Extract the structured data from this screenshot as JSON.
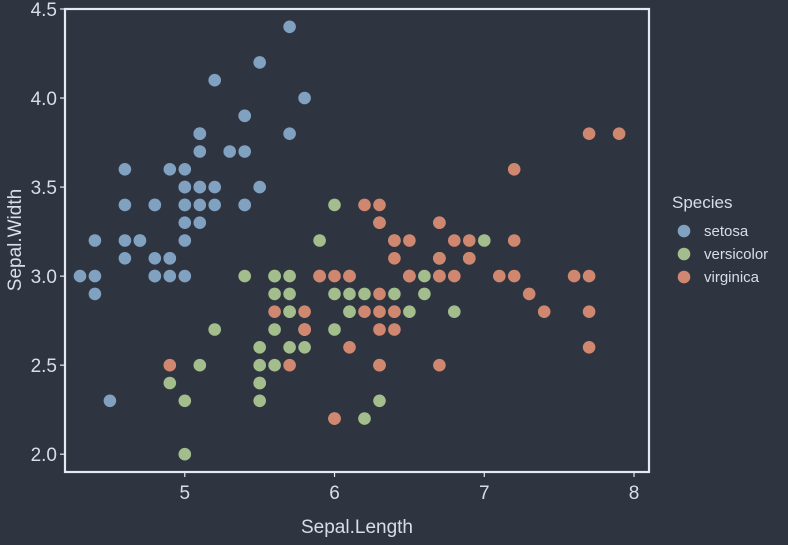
{
  "chart_data": {
    "type": "scatter",
    "title": "",
    "xlabel": "Sepal.Length",
    "ylabel": "Sepal.Width",
    "xlim": [
      4.2,
      8.1
    ],
    "ylim": [
      1.9,
      4.5
    ],
    "xticks": [
      5,
      6,
      7,
      8
    ],
    "yticks": [
      2.0,
      2.5,
      3.0,
      3.5,
      4.0,
      4.5
    ],
    "grid": false,
    "legend": {
      "title": "Species",
      "placement": "right",
      "entries": [
        "setosa",
        "versicolor",
        "virginica"
      ]
    },
    "series": [
      {
        "name": "setosa",
        "color": "#81a1c1",
        "x": [
          5.1,
          4.9,
          4.7,
          4.6,
          5.0,
          5.4,
          4.6,
          5.0,
          4.4,
          4.9,
          5.4,
          4.8,
          4.8,
          4.3,
          5.8,
          5.7,
          5.4,
          5.1,
          5.7,
          5.1,
          5.4,
          5.1,
          4.6,
          5.1,
          4.8,
          5.0,
          5.0,
          5.2,
          5.2,
          4.7,
          4.8,
          5.4,
          5.2,
          5.5,
          4.9,
          5.0,
          5.5,
          4.9,
          4.4,
          5.1,
          5.0,
          4.5,
          4.4,
          5.0,
          5.1,
          4.8,
          5.1,
          4.6,
          5.3,
          5.0
        ],
        "y": [
          3.5,
          3.0,
          3.2,
          3.1,
          3.6,
          3.9,
          3.4,
          3.4,
          2.9,
          3.1,
          3.7,
          3.4,
          3.0,
          3.0,
          4.0,
          4.4,
          3.9,
          3.5,
          3.8,
          3.8,
          3.4,
          3.7,
          3.6,
          3.3,
          3.4,
          3.0,
          3.4,
          3.5,
          3.4,
          3.2,
          3.1,
          3.4,
          4.1,
          4.2,
          3.1,
          3.2,
          3.5,
          3.6,
          3.0,
          3.4,
          3.5,
          2.3,
          3.2,
          3.5,
          3.8,
          3.0,
          3.8,
          3.2,
          3.7,
          3.3
        ]
      },
      {
        "name": "versicolor",
        "color": "#a3be8c",
        "x": [
          7.0,
          6.4,
          6.9,
          5.5,
          6.5,
          5.7,
          6.3,
          4.9,
          6.6,
          5.2,
          5.0,
          5.9,
          6.0,
          6.1,
          5.6,
          6.7,
          5.6,
          5.8,
          6.2,
          5.6,
          5.9,
          6.1,
          6.3,
          6.1,
          6.4,
          6.6,
          6.8,
          6.7,
          6.0,
          5.7,
          5.5,
          5.5,
          5.8,
          6.0,
          5.4,
          6.0,
          6.7,
          6.3,
          5.6,
          5.5,
          5.5,
          6.1,
          5.8,
          5.0,
          5.6,
          5.7,
          5.7,
          6.2,
          5.1,
          5.7
        ],
        "y": [
          3.2,
          3.2,
          3.1,
          2.3,
          2.8,
          2.8,
          3.3,
          2.4,
          2.9,
          2.7,
          2.0,
          3.0,
          2.2,
          2.9,
          2.9,
          3.1,
          3.0,
          2.7,
          2.2,
          2.5,
          3.2,
          2.8,
          2.5,
          2.8,
          2.9,
          3.0,
          2.8,
          3.0,
          2.9,
          2.6,
          2.4,
          2.4,
          2.7,
          2.7,
          3.0,
          3.4,
          3.1,
          2.3,
          3.0,
          2.5,
          2.6,
          3.0,
          2.6,
          2.3,
          2.7,
          3.0,
          2.9,
          2.9,
          2.5,
          2.8
        ]
      },
      {
        "name": "virginica",
        "color": "#d08770",
        "x": [
          6.3,
          5.8,
          7.1,
          6.3,
          6.5,
          7.6,
          4.9,
          7.3,
          6.7,
          7.2,
          6.5,
          6.4,
          6.8,
          5.7,
          5.8,
          6.4,
          6.5,
          7.7,
          7.7,
          6.0,
          6.9,
          5.6,
          7.7,
          6.3,
          6.7,
          7.2,
          6.2,
          6.1,
          6.4,
          7.2,
          7.4,
          7.9,
          6.4,
          6.3,
          6.1,
          7.7,
          6.3,
          6.4,
          6.0,
          6.9,
          6.7,
          6.9,
          5.8,
          6.8,
          6.7,
          6.7,
          6.3,
          6.5,
          6.2,
          5.9
        ],
        "y": [
          3.3,
          2.7,
          3.0,
          2.9,
          3.0,
          3.0,
          2.5,
          2.9,
          2.5,
          3.6,
          3.2,
          2.7,
          3.0,
          2.5,
          2.8,
          3.2,
          3.0,
          3.8,
          2.6,
          2.2,
          3.2,
          2.8,
          2.8,
          2.7,
          3.3,
          3.2,
          2.8,
          3.0,
          2.8,
          3.0,
          2.8,
          3.8,
          2.8,
          2.8,
          2.6,
          3.0,
          3.4,
          3.1,
          3.0,
          3.1,
          3.1,
          3.1,
          2.7,
          3.2,
          3.3,
          3.0,
          2.5,
          3.0,
          3.4,
          3.0
        ]
      }
    ]
  }
}
